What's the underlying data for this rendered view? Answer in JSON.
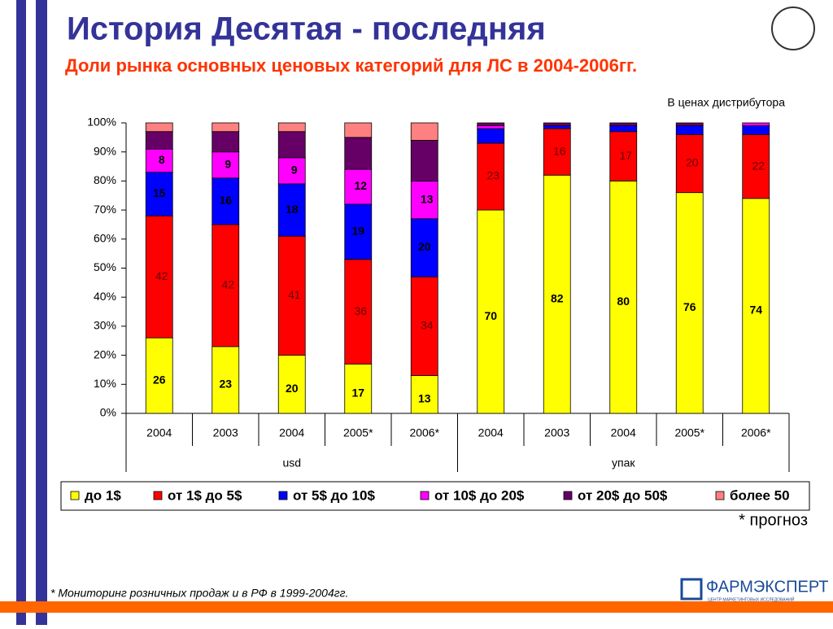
{
  "chart_data": {
    "type": "bar",
    "stacked": true,
    "title": "История Десятая - последняя",
    "subtitle": "Доли рынка основных ценовых категорий для ЛС в 2004-2006гг.",
    "note": "В ценах дистрибутора",
    "forecast_note": "* прогноз",
    "category_groups": [
      {
        "name": "usd",
        "categories": [
          "2004",
          "2003",
          "2004",
          "2005*",
          "2006*"
        ]
      },
      {
        "name": "упак",
        "categories": [
          "2004",
          "2003",
          "2004",
          "2005*",
          "2006*"
        ]
      }
    ],
    "ylim": [
      0,
      100
    ],
    "yticks": [
      {
        "value": 0,
        "label": "0%"
      },
      {
        "value": 10,
        "label": "10%"
      },
      {
        "value": 20,
        "label": "20%"
      },
      {
        "value": 30,
        "label": "30%"
      },
      {
        "value": 40,
        "label": "40%"
      },
      {
        "value": 50,
        "label": "50%"
      },
      {
        "value": 60,
        "label": "60%"
      },
      {
        "value": 70,
        "label": "70%"
      },
      {
        "value": 80,
        "label": "80%"
      },
      {
        "value": 90,
        "label": "90%"
      },
      {
        "value": 100,
        "label": "100%"
      }
    ],
    "legend": "bottom",
    "series": [
      {
        "name": "до 1$",
        "color": "#ffff00",
        "labels": true,
        "values": [
          26,
          23,
          20,
          17,
          13,
          70,
          82,
          80,
          76,
          74
        ]
      },
      {
        "name": "от 1$ до 5$",
        "color": "#ff0000",
        "labels": true,
        "values": [
          42,
          42,
          41,
          36,
          34,
          23,
          16,
          17,
          20,
          22
        ]
      },
      {
        "name": "от 5$ до 10$",
        "color": "#0000ff",
        "labels": true,
        "values": [
          15,
          16,
          18,
          19,
          20,
          5,
          1,
          2,
          3,
          3
        ]
      },
      {
        "name": "от 10$ до 20$",
        "color": "#ff00ff",
        "labels": true,
        "values": [
          8,
          9,
          9,
          12,
          13,
          1,
          0,
          0,
          0,
          1
        ]
      },
      {
        "name": "от 20$ до 50$",
        "color": "#660066",
        "labels": false,
        "values": [
          6,
          7,
          9,
          11,
          14,
          1,
          1,
          1,
          1,
          0
        ]
      },
      {
        "name": "более 50",
        "color": "#ff8080",
        "labels": false,
        "values": [
          3,
          3,
          3,
          5,
          6,
          0,
          0,
          0,
          0,
          0
        ]
      }
    ]
  },
  "footer": {
    "source": "* Мониторинг розничных продаж и в РФ в 1999-2004гг.",
    "logo": "ФАРМЭКСПЕРТ",
    "logo_tagline": "ЦЕНТР МАРКЕТИНГОВЫХ ИССЛЕДОВАНИЙ"
  }
}
